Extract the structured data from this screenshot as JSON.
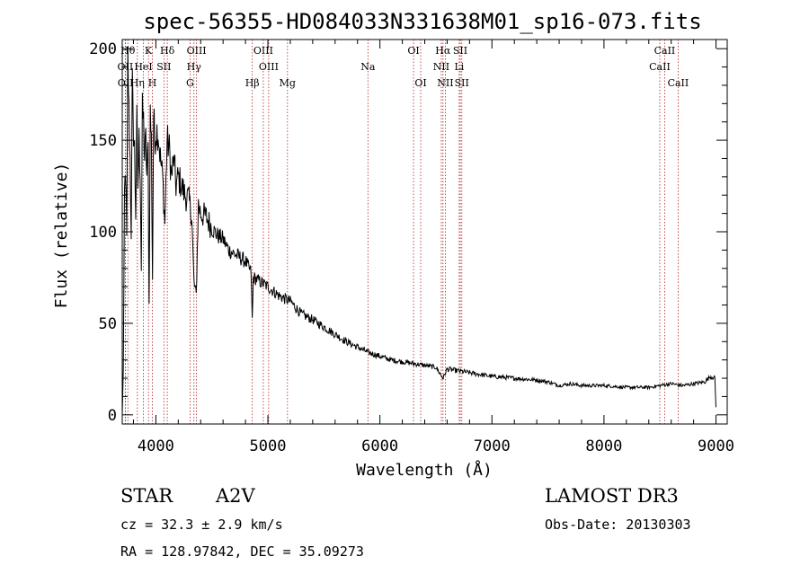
{
  "chart_data": {
    "type": "line",
    "title": "spec-56355-HD084033N331638M01_sp16-073.fits",
    "xlabel": "Wavelength (Å)",
    "ylabel": "Flux (relative)",
    "xlim": [
      3700,
      9100
    ],
    "ylim": [
      -5,
      205
    ],
    "xticks": [
      4000,
      5000,
      6000,
      7000,
      8000,
      9000
    ],
    "yticks": [
      0,
      50,
      100,
      150,
      200
    ],
    "series": [
      {
        "name": "flux",
        "x": [
          3700,
          3710,
          3720,
          3730,
          3740,
          3750,
          3760,
          3770,
          3780,
          3790,
          3800,
          3810,
          3820,
          3830,
          3840,
          3850,
          3860,
          3870,
          3880,
          3890,
          3900,
          3910,
          3920,
          3930,
          3940,
          3950,
          3960,
          3970,
          3980,
          3990,
          4000,
          4020,
          4040,
          4060,
          4080,
          4100,
          4120,
          4140,
          4160,
          4180,
          4200,
          4230,
          4260,
          4290,
          4320,
          4340,
          4360,
          4380,
          4400,
          4450,
          4500,
          4550,
          4600,
          4650,
          4700,
          4750,
          4800,
          4830,
          4850,
          4861,
          4870,
          4900,
          4950,
          5000,
          5100,
          5200,
          5300,
          5400,
          5500,
          5600,
          5700,
          5800,
          5900,
          6000,
          6100,
          6200,
          6300,
          6400,
          6500,
          6563,
          6600,
          6700,
          6800,
          7000,
          7200,
          7400,
          7500,
          7600,
          7700,
          7800,
          8000,
          8200,
          8400,
          8500,
          8600,
          8700,
          8800,
          8900,
          8950,
          8990,
          9000
        ],
        "y": [
          0,
          25,
          120,
          135,
          95,
          195,
          165,
          140,
          100,
          180,
          155,
          145,
          110,
          160,
          125,
          150,
          135,
          80,
          165,
          160,
          140,
          150,
          130,
          145,
          60,
          165,
          150,
          75,
          165,
          150,
          155,
          155,
          140,
          130,
          105,
          150,
          145,
          130,
          140,
          125,
          130,
          125,
          120,
          118,
          110,
          72,
          65,
          115,
          110,
          108,
          102,
          98,
          96,
          90,
          88,
          86,
          84,
          80,
          78,
          50,
          75,
          74,
          72,
          70,
          65,
          62,
          55,
          52,
          48,
          44,
          40,
          37,
          34,
          32,
          30,
          29,
          28,
          27,
          26,
          20,
          25,
          24,
          23,
          21,
          20,
          19,
          18,
          16,
          17,
          16,
          16,
          15,
          15,
          16,
          17,
          16,
          17,
          18,
          21,
          20,
          4
        ]
      }
    ],
    "spectral_lines": [
      {
        "label": "Hθ",
        "x": 3750,
        "row": 0
      },
      {
        "label": "K",
        "x": 3934,
        "row": 0
      },
      {
        "label": "Hδ",
        "x": 4102,
        "row": 0
      },
      {
        "label": "OIII",
        "x": 4363,
        "row": 0
      },
      {
        "label": "OIII",
        "x": 4959,
        "row": 0
      },
      {
        "label": "OI",
        "x": 6300,
        "row": 0
      },
      {
        "label": "Hα",
        "x": 6563,
        "row": 0
      },
      {
        "label": "SII",
        "x": 6717,
        "row": 0
      },
      {
        "label": "CaII",
        "x": 8542,
        "row": 0
      },
      {
        "label": "OII",
        "x": 3727,
        "row": 1
      },
      {
        "label": "HeI",
        "x": 3889,
        "row": 1
      },
      {
        "label": "SII",
        "x": 4072,
        "row": 1
      },
      {
        "label": "Hγ",
        "x": 4340,
        "row": 1
      },
      {
        "label": "OIII",
        "x": 5007,
        "row": 1
      },
      {
        "label": "Na",
        "x": 5893,
        "row": 1
      },
      {
        "label": "NII",
        "x": 6548,
        "row": 1
      },
      {
        "label": "Li",
        "x": 6708,
        "row": 1
      },
      {
        "label": "CaII",
        "x": 8498,
        "row": 1
      },
      {
        "label": "OII",
        "x": 3729,
        "row": 2
      },
      {
        "label": "Hη",
        "x": 3835,
        "row": 2
      },
      {
        "label": "H",
        "x": 3969,
        "row": 2
      },
      {
        "label": "G",
        "x": 4305,
        "row": 2
      },
      {
        "label": "Hβ",
        "x": 4861,
        "row": 2
      },
      {
        "label": "Mg",
        "x": 5175,
        "row": 2
      },
      {
        "label": "OI",
        "x": 6364,
        "row": 2
      },
      {
        "label": "NII",
        "x": 6584,
        "row": 2
      },
      {
        "label": "SII",
        "x": 6731,
        "row": 2
      },
      {
        "label": "CaII",
        "x": 8662,
        "row": 2
      }
    ]
  },
  "info": {
    "object_type": "STAR",
    "subclass": "A2V",
    "survey": "LAMOST DR3",
    "redshift": "cz = 32.3 ± 2.9 km/s",
    "obs_date": "Obs-Date: 20130303",
    "coords": "RA = 128.97842, DEC =  35.09273"
  },
  "colors": {
    "line_marker": "#b22222",
    "spectrum": "#000000",
    "axes": "#000000"
  }
}
